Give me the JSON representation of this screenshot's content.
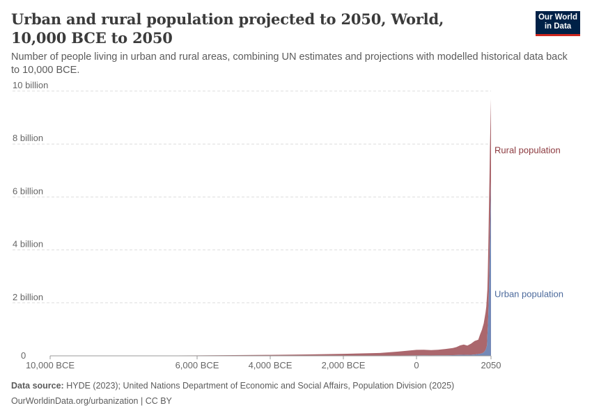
{
  "header": {
    "title": "Urban and rural population projected to 2050, World, 10,000 BCE to 2050",
    "subtitle": "Number of people living in urban and rural areas, combining UN estimates and projections with modelled historical data back to 10,000 BCE.",
    "logo_line1": "Our World",
    "logo_line2": "in Data"
  },
  "footer": {
    "source_label": "Data source:",
    "source_text": "HYDE (2023); United Nations Department of Economic and Social Affairs, Population Division (2025)",
    "url_license": "OurWorldinData.org/urbanization | CC BY"
  },
  "colors": {
    "rural": "#a2575d",
    "urban": "#6d83b3",
    "grid": "#dddddd",
    "rural_label": "#8c3a3f",
    "urban_label": "#4c6a9c"
  },
  "chart_data": {
    "type": "area",
    "stacked": true,
    "x_unit": "year",
    "xlim": [
      -10000,
      2050
    ],
    "ylim": [
      0,
      10000000000
    ],
    "x_ticks": [
      {
        "value": -10000,
        "label": "10,000 BCE"
      },
      {
        "value": -6000,
        "label": "6,000 BCE"
      },
      {
        "value": -4000,
        "label": "4,000 BCE"
      },
      {
        "value": -2000,
        "label": "2,000 BCE"
      },
      {
        "value": 0,
        "label": "0"
      },
      {
        "value": 2050,
        "label": "2050"
      }
    ],
    "y_ticks": [
      {
        "value": 0,
        "label": "0"
      },
      {
        "value": 2000000000,
        "label": "2 billion"
      },
      {
        "value": 4000000000,
        "label": "4 billion"
      },
      {
        "value": 6000000000,
        "label": "6 billion"
      },
      {
        "value": 8000000000,
        "label": "8 billion"
      },
      {
        "value": 10000000000,
        "label": "10 billion"
      }
    ],
    "grid": true,
    "x": [
      -10000,
      -8000,
      -6000,
      -5000,
      -4000,
      -3000,
      -2000,
      -1000,
      -500,
      0,
      200,
      400,
      600,
      800,
      1000,
      1100,
      1200,
      1300,
      1400,
      1500,
      1600,
      1700,
      1750,
      1800,
      1850,
      1900,
      1920,
      1940,
      1950,
      1960,
      1970,
      1980,
      1990,
      2000,
      2010,
      2020,
      2030,
      2040,
      2050
    ],
    "series": [
      {
        "name": "Urban population",
        "values": [
          0,
          100000,
          300000,
          800000,
          1500000,
          3000000,
          5000000,
          8000000,
          12000000,
          17000000,
          18000000,
          17000000,
          18000000,
          20000000,
          25000000,
          30000000,
          35000000,
          38000000,
          36000000,
          40000000,
          50000000,
          70000000,
          80000000,
          95000000,
          130000000,
          220000000,
          300000000,
          400000000,
          750000000,
          1020000000,
          1350000000,
          1750000000,
          2290000000,
          2870000000,
          3600000000,
          4380000000,
          5100000000,
          5850000000,
          6600000000
        ]
      },
      {
        "name": "Rural population",
        "values": [
          4400000,
          8000000,
          15000000,
          25000000,
          35000000,
          50000000,
          70000000,
          100000000,
          150000000,
          210000000,
          210000000,
          200000000,
          210000000,
          240000000,
          270000000,
          300000000,
          360000000,
          390000000,
          350000000,
          420000000,
          510000000,
          540000000,
          730000000,
          890000000,
          1100000000,
          1420000000,
          1560000000,
          1900000000,
          1750000000,
          2000000000,
          2350000000,
          2690000000,
          3020000000,
          3270000000,
          3330000000,
          3460000000,
          3370000000,
          3270000000,
          3100000000
        ]
      }
    ]
  }
}
